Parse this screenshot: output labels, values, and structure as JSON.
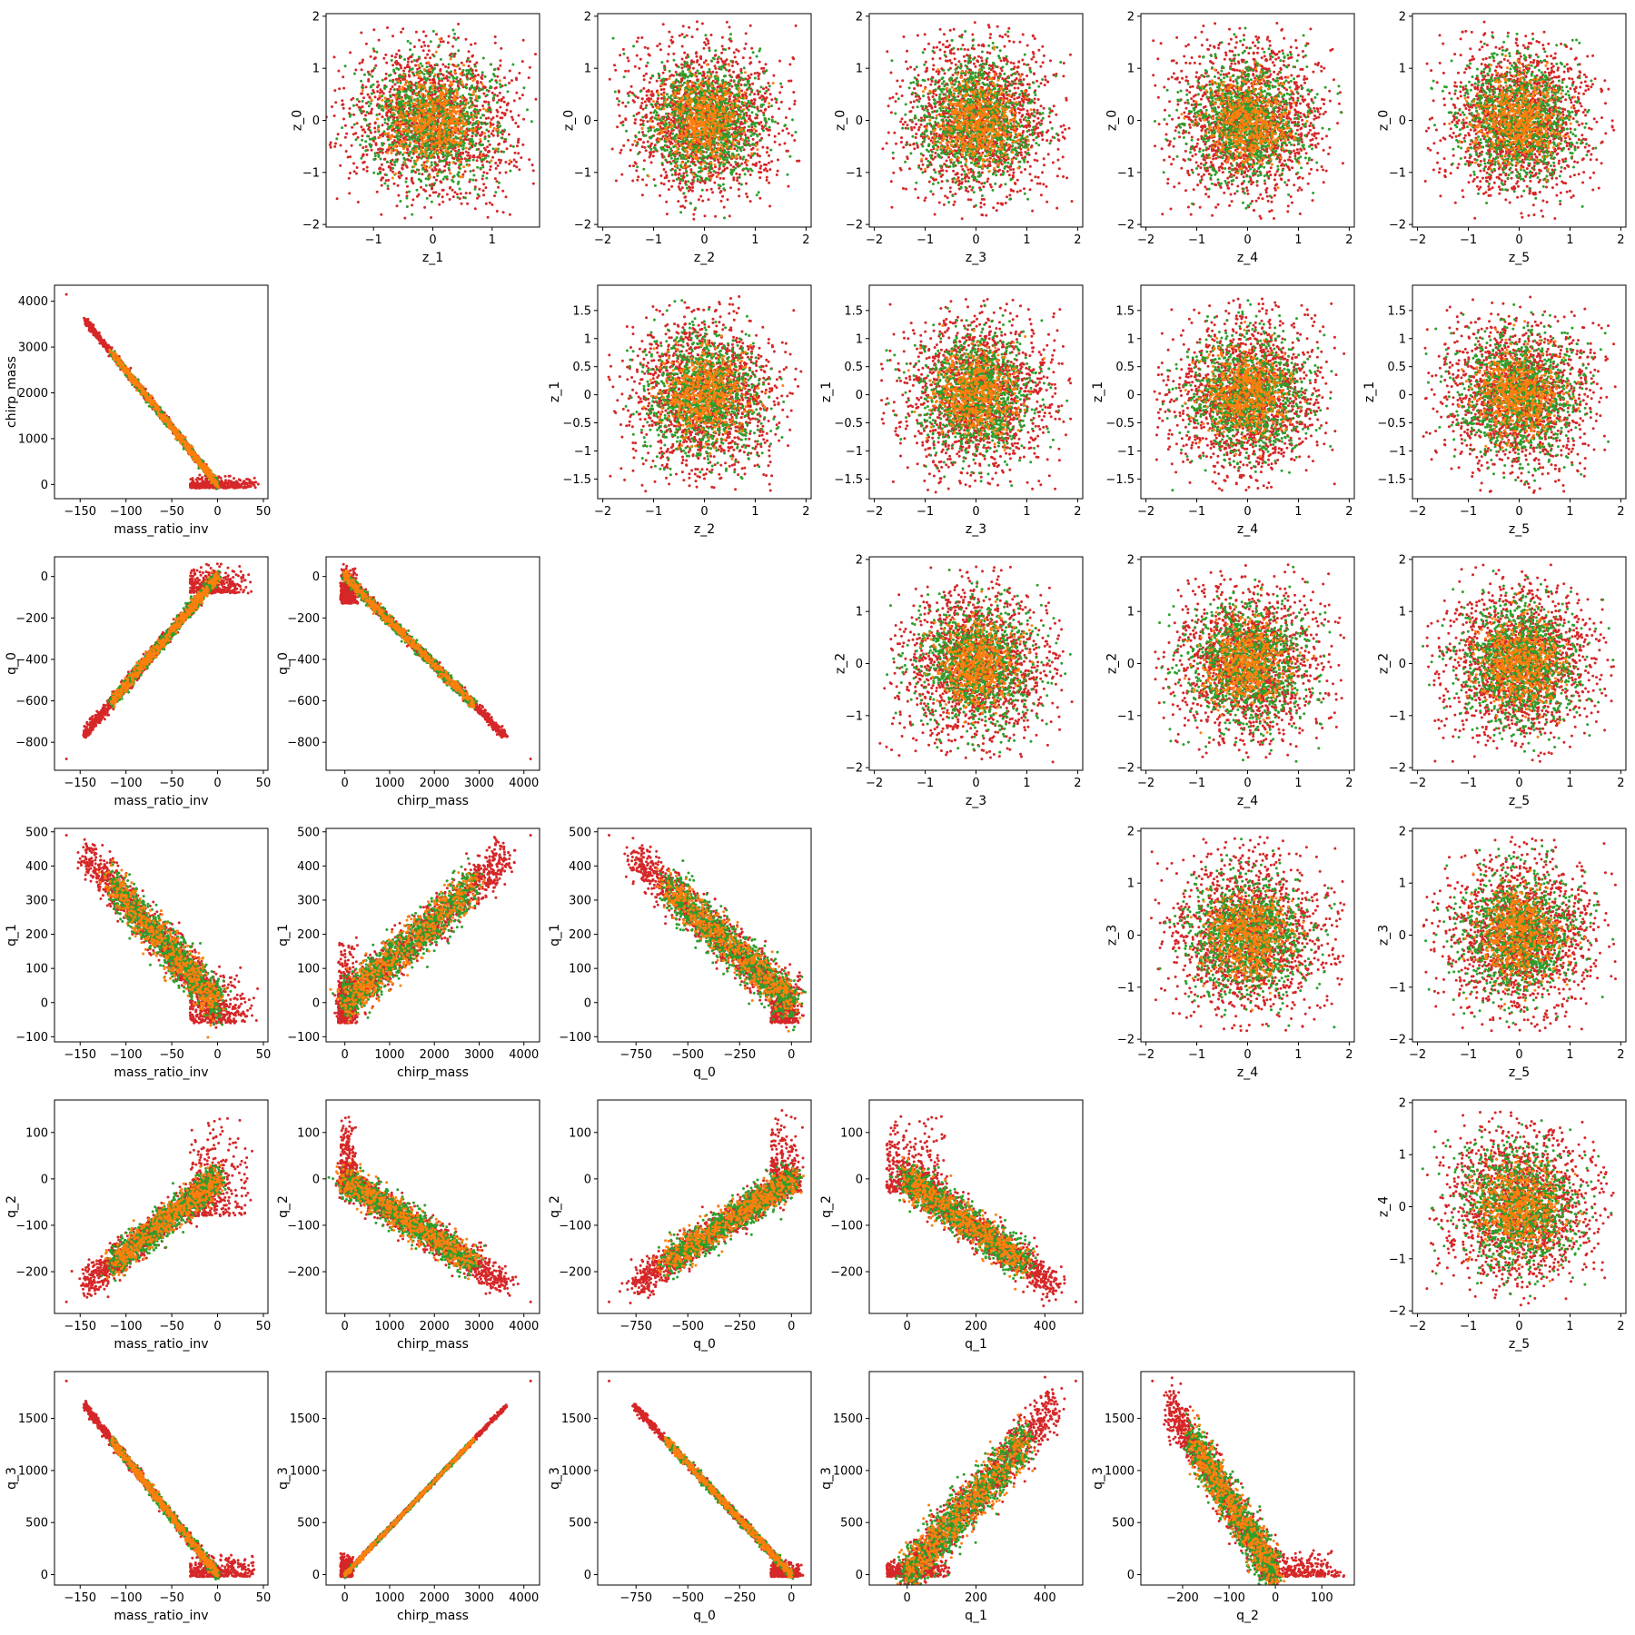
{
  "figure": {
    "point_colors": [
      "#d62728",
      "#2ca02c",
      "#ff7f0e"
    ],
    "series_point_counts": [
      1500,
      1000,
      500
    ]
  },
  "chart_data": [
    {
      "type": "scatter",
      "row": 0,
      "col": 1,
      "xlabel": "z_1",
      "ylabel": "z_0",
      "xlim": [
        -1.8,
        1.8
      ],
      "ylim": [
        -2.05,
        2.05
      ],
      "xticks": [
        -1,
        0,
        1
      ],
      "yticks": [
        -2,
        -1,
        0,
        1,
        2
      ],
      "relation": {
        "kind": "cloud",
        "sx": 0.7,
        "sy": 0.75,
        "rmax_x": 1.8,
        "rmax_y": 1.9
      }
    },
    {
      "type": "scatter",
      "row": 0,
      "col": 2,
      "xlabel": "z_2",
      "ylabel": "z_0",
      "xlim": [
        -2.1,
        2.1
      ],
      "ylim": [
        -2.05,
        2.05
      ],
      "xticks": [
        -2,
        -1,
        0,
        1,
        2
      ],
      "yticks": [
        -2,
        -1,
        0,
        1,
        2
      ],
      "relation": {
        "kind": "cloud",
        "sx": 0.75,
        "sy": 0.75,
        "rmax_x": 1.9,
        "rmax_y": 1.9
      }
    },
    {
      "type": "scatter",
      "row": 0,
      "col": 3,
      "xlabel": "z_3",
      "ylabel": "z_0",
      "xlim": [
        -2.1,
        2.1
      ],
      "ylim": [
        -2.05,
        2.05
      ],
      "xticks": [
        -2,
        -1,
        0,
        1,
        2
      ],
      "yticks": [
        -2,
        -1,
        0,
        1,
        2
      ],
      "relation": {
        "kind": "cloud",
        "sx": 0.75,
        "sy": 0.75,
        "rmax_x": 1.9,
        "rmax_y": 1.9
      }
    },
    {
      "type": "scatter",
      "row": 0,
      "col": 4,
      "xlabel": "z_4",
      "ylabel": "z_0",
      "xlim": [
        -2.1,
        2.1
      ],
      "ylim": [
        -2.05,
        2.05
      ],
      "xticks": [
        -2,
        -1,
        0,
        1,
        2
      ],
      "yticks": [
        -2,
        -1,
        0,
        1,
        2
      ],
      "relation": {
        "kind": "cloud",
        "sx": 0.75,
        "sy": 0.75,
        "rmax_x": 1.9,
        "rmax_y": 1.9
      }
    },
    {
      "type": "scatter",
      "row": 0,
      "col": 5,
      "xlabel": "z_5",
      "ylabel": "z_0",
      "xlim": [
        -2.1,
        2.1
      ],
      "ylim": [
        -2.05,
        2.05
      ],
      "xticks": [
        -2,
        -1,
        0,
        1,
        2
      ],
      "yticks": [
        -2,
        -1,
        0,
        1,
        2
      ],
      "relation": {
        "kind": "cloud",
        "sx": 0.75,
        "sy": 0.75,
        "rmax_x": 1.9,
        "rmax_y": 1.9
      }
    },
    {
      "type": "scatter",
      "row": 1,
      "col": 0,
      "xlabel": "mass_ratio_inv",
      "ylabel": "chirp_mass",
      "xlim": [
        -178,
        55
      ],
      "ylim": [
        -310,
        4350
      ],
      "xticks": [
        -150,
        -100,
        -50,
        0,
        50
      ],
      "yticks": [
        0,
        1000,
        2000,
        3000,
        4000
      ],
      "outlier": [
        -165,
        4150
      ],
      "relation": {
        "kind": "ray",
        "x_end": -145,
        "y_end": 3600,
        "width": 0.012,
        "tail": {
          "x": [
            -30,
            45
          ],
          "y": [
            -80,
            220
          ]
        }
      }
    },
    {
      "type": "scatter",
      "row": 1,
      "col": 2,
      "xlabel": "z_2",
      "ylabel": "z_1",
      "xlim": [
        -2.1,
        2.1
      ],
      "ylim": [
        -1.85,
        1.95
      ],
      "xticks": [
        -2,
        -1,
        0,
        1,
        2
      ],
      "yticks": [
        -1.5,
        -1.0,
        -0.5,
        0.0,
        0.5,
        1.0,
        1.5
      ],
      "relation": {
        "kind": "cloud",
        "sx": 0.75,
        "sy": 0.7,
        "rmax_x": 1.9,
        "rmax_y": 1.75
      }
    },
    {
      "type": "scatter",
      "row": 1,
      "col": 3,
      "xlabel": "z_3",
      "ylabel": "z_1",
      "xlim": [
        -2.1,
        2.1
      ],
      "ylim": [
        -1.85,
        1.95
      ],
      "xticks": [
        -2,
        -1,
        0,
        1,
        2
      ],
      "yticks": [
        -1.5,
        -1.0,
        -0.5,
        0.0,
        0.5,
        1.0,
        1.5
      ],
      "relation": {
        "kind": "cloud",
        "sx": 0.75,
        "sy": 0.7,
        "rmax_x": 1.9,
        "rmax_y": 1.75
      }
    },
    {
      "type": "scatter",
      "row": 1,
      "col": 4,
      "xlabel": "z_4",
      "ylabel": "z_1",
      "xlim": [
        -2.1,
        2.1
      ],
      "ylim": [
        -1.85,
        1.95
      ],
      "xticks": [
        -2,
        -1,
        0,
        1,
        2
      ],
      "yticks": [
        -1.5,
        -1.0,
        -0.5,
        0.0,
        0.5,
        1.0,
        1.5
      ],
      "relation": {
        "kind": "cloud",
        "sx": 0.75,
        "sy": 0.7,
        "rmax_x": 1.9,
        "rmax_y": 1.75
      }
    },
    {
      "type": "scatter",
      "row": 1,
      "col": 5,
      "xlabel": "z_5",
      "ylabel": "z_1",
      "xlim": [
        -2.1,
        2.1
      ],
      "ylim": [
        -1.85,
        1.95
      ],
      "xticks": [
        -2,
        -1,
        0,
        1,
        2
      ],
      "yticks": [
        -1.5,
        -1.0,
        -0.5,
        0.0,
        0.5,
        1.0,
        1.5
      ],
      "relation": {
        "kind": "cloud",
        "sx": 0.75,
        "sy": 0.7,
        "rmax_x": 1.9,
        "rmax_y": 1.75
      }
    },
    {
      "type": "scatter",
      "row": 2,
      "col": 0,
      "xlabel": "mass_ratio_inv",
      "ylabel": "q_0",
      "xlim": [
        -178,
        55
      ],
      "ylim": [
        -935,
        95
      ],
      "xticks": [
        -150,
        -100,
        -50,
        0,
        50
      ],
      "yticks": [
        -800,
        -600,
        -400,
        -200,
        0
      ],
      "outlier": [
        -165,
        -880
      ],
      "relation": {
        "kind": "ray",
        "x_end": -145,
        "y_end": -760,
        "width": 0.02,
        "tail": {
          "x": [
            -30,
            40
          ],
          "y": [
            -80,
            70
          ]
        }
      }
    },
    {
      "type": "scatter",
      "row": 2,
      "col": 1,
      "xlabel": "chirp_mass",
      "ylabel": "q_0",
      "xlim": [
        -420,
        4350
      ],
      "ylim": [
        -935,
        95
      ],
      "xticks": [
        0,
        1000,
        2000,
        3000,
        4000
      ],
      "yticks": [
        -800,
        -600,
        -400,
        -200,
        0
      ],
      "outlier": [
        4150,
        -880
      ],
      "relation": {
        "kind": "ray",
        "x_end": 3600,
        "y_end": -770,
        "width": 0.015,
        "tail": {
          "x": [
            -100,
            300
          ],
          "y": [
            -130,
            70
          ]
        }
      }
    },
    {
      "type": "scatter",
      "row": 2,
      "col": 3,
      "xlabel": "z_3",
      "ylabel": "z_2",
      "xlim": [
        -2.1,
        2.1
      ],
      "ylim": [
        -2.05,
        2.05
      ],
      "xticks": [
        -2,
        -1,
        0,
        1,
        2
      ],
      "yticks": [
        -2,
        -1,
        0,
        1,
        2
      ],
      "relation": {
        "kind": "cloud",
        "sx": 0.75,
        "sy": 0.75,
        "rmax_x": 1.9,
        "rmax_y": 1.9
      }
    },
    {
      "type": "scatter",
      "row": 2,
      "col": 4,
      "xlabel": "z_4",
      "ylabel": "z_2",
      "xlim": [
        -2.1,
        2.1
      ],
      "ylim": [
        -2.05,
        2.05
      ],
      "xticks": [
        -2,
        -1,
        0,
        1,
        2
      ],
      "yticks": [
        -2,
        -1,
        0,
        1,
        2
      ],
      "relation": {
        "kind": "cloud",
        "sx": 0.75,
        "sy": 0.75,
        "rmax_x": 1.9,
        "rmax_y": 1.9
      }
    },
    {
      "type": "scatter",
      "row": 2,
      "col": 5,
      "xlabel": "z_5",
      "ylabel": "z_2",
      "xlim": [
        -2.1,
        2.1
      ],
      "ylim": [
        -2.05,
        2.05
      ],
      "xticks": [
        -2,
        -1,
        0,
        1,
        2
      ],
      "yticks": [
        -2,
        -1,
        0,
        1,
        2
      ],
      "relation": {
        "kind": "cloud",
        "sx": 0.75,
        "sy": 0.75,
        "rmax_x": 1.9,
        "rmax_y": 1.9
      }
    },
    {
      "type": "scatter",
      "row": 3,
      "col": 0,
      "xlabel": "mass_ratio_inv",
      "ylabel": "q_1",
      "xlim": [
        -178,
        55
      ],
      "ylim": [
        -115,
        510
      ],
      "xticks": [
        -150,
        -100,
        -50,
        0,
        50
      ],
      "yticks": [
        -100,
        0,
        100,
        200,
        300,
        400,
        500
      ],
      "outlier": [
        -165,
        490
      ],
      "relation": {
        "kind": "ray",
        "x_end": -145,
        "y_end": 430,
        "width": 0.07,
        "tail": {
          "x": [
            -30,
            45
          ],
          "y": [
            -60,
            120
          ]
        }
      }
    },
    {
      "type": "scatter",
      "row": 3,
      "col": 1,
      "xlabel": "chirp_mass",
      "ylabel": "q_1",
      "xlim": [
        -420,
        4350
      ],
      "ylim": [
        -115,
        510
      ],
      "xticks": [
        0,
        1000,
        2000,
        3000,
        4000
      ],
      "yticks": [
        -100,
        0,
        100,
        200,
        300,
        400,
        500
      ],
      "outlier": [
        4150,
        490
      ],
      "relation": {
        "kind": "ray",
        "x_end": 3600,
        "y_end": 430,
        "width": 0.07,
        "tail": {
          "x": [
            -150,
            300
          ],
          "y": [
            -60,
            200
          ]
        }
      }
    },
    {
      "type": "scatter",
      "row": 3,
      "col": 2,
      "xlabel": "q_0",
      "ylabel": "q_1",
      "xlim": [
        -935,
        95
      ],
      "ylim": [
        -115,
        510
      ],
      "xticks": [
        -750,
        -500,
        -250,
        0
      ],
      "yticks": [
        -100,
        0,
        100,
        200,
        300,
        400,
        500
      ],
      "outlier": [
        -880,
        490
      ],
      "relation": {
        "kind": "ray",
        "x_end": -760,
        "y_end": 430,
        "width": 0.07,
        "tail": {
          "x": [
            -100,
            60
          ],
          "y": [
            -60,
            100
          ]
        }
      }
    },
    {
      "type": "scatter",
      "row": 3,
      "col": 4,
      "xlabel": "z_4",
      "ylabel": "z_3",
      "xlim": [
        -2.1,
        2.1
      ],
      "ylim": [
        -2.05,
        2.05
      ],
      "xticks": [
        -2,
        -1,
        0,
        1,
        2
      ],
      "yticks": [
        -2,
        -1,
        0,
        1,
        2
      ],
      "relation": {
        "kind": "cloud",
        "sx": 0.75,
        "sy": 0.75,
        "rmax_x": 1.9,
        "rmax_y": 1.9
      }
    },
    {
      "type": "scatter",
      "row": 3,
      "col": 5,
      "xlabel": "z_5",
      "ylabel": "z_3",
      "xlim": [
        -2.1,
        2.1
      ],
      "ylim": [
        -2.05,
        2.05
      ],
      "xticks": [
        -2,
        -1,
        0,
        1,
        2
      ],
      "yticks": [
        -2,
        -1,
        0,
        1,
        2
      ],
      "relation": {
        "kind": "cloud",
        "sx": 0.75,
        "sy": 0.75,
        "rmax_x": 1.9,
        "rmax_y": 1.9
      }
    },
    {
      "type": "scatter",
      "row": 4,
      "col": 0,
      "xlabel": "mass_ratio_inv",
      "ylabel": "q_2",
      "xlim": [
        -178,
        55
      ],
      "ylim": [
        -290,
        170
      ],
      "xticks": [
        -150,
        -100,
        -50,
        0,
        50
      ],
      "yticks": [
        -200,
        -100,
        0,
        100
      ],
      "outlier": [
        -165,
        -265
      ],
      "relation": {
        "kind": "ray",
        "x_end": -145,
        "y_end": -230,
        "width": 0.07,
        "tail": {
          "x": [
            -30,
            40
          ],
          "y": [
            -80,
            150
          ]
        }
      }
    },
    {
      "type": "scatter",
      "row": 4,
      "col": 1,
      "xlabel": "chirp_mass",
      "ylabel": "q_2",
      "xlim": [
        -420,
        4350
      ],
      "ylim": [
        -290,
        170
      ],
      "xticks": [
        0,
        1000,
        2000,
        3000,
        4000
      ],
      "yticks": [
        -200,
        -100,
        0,
        100
      ],
      "outlier": [
        4150,
        -265
      ],
      "relation": {
        "kind": "ray",
        "x_end": 3600,
        "y_end": -230,
        "width": 0.07,
        "tail": {
          "x": [
            -100,
            300
          ],
          "y": [
            -30,
            150
          ]
        }
      }
    },
    {
      "type": "scatter",
      "row": 4,
      "col": 2,
      "xlabel": "q_0",
      "ylabel": "q_2",
      "xlim": [
        -935,
        95
      ],
      "ylim": [
        -290,
        170
      ],
      "xticks": [
        -750,
        -500,
        -250,
        0
      ],
      "yticks": [
        -200,
        -100,
        0,
        100
      ],
      "outlier": [
        -880,
        -265
      ],
      "relation": {
        "kind": "ray",
        "x_end": -760,
        "y_end": -230,
        "width": 0.07,
        "tail": {
          "x": [
            -100,
            60
          ],
          "y": [
            -30,
            150
          ]
        }
      }
    },
    {
      "type": "scatter",
      "row": 4,
      "col": 3,
      "xlabel": "q_1",
      "ylabel": "q_2",
      "xlim": [
        -110,
        510
      ],
      "ylim": [
        -290,
        170
      ],
      "xticks": [
        0,
        200,
        400
      ],
      "yticks": [
        -200,
        -100,
        0,
        100
      ],
      "outlier": [
        490,
        -265
      ],
      "relation": {
        "kind": "ray",
        "x_end": 430,
        "y_end": -230,
        "width": 0.08,
        "tail": {
          "x": [
            -60,
            120
          ],
          "y": [
            -30,
            150
          ]
        }
      }
    },
    {
      "type": "scatter",
      "row": 4,
      "col": 5,
      "xlabel": "z_5",
      "ylabel": "z_4",
      "xlim": [
        -2.1,
        2.1
      ],
      "ylim": [
        -2.05,
        2.05
      ],
      "xticks": [
        -2,
        -1,
        0,
        1,
        2
      ],
      "yticks": [
        -2,
        -1,
        0,
        1,
        2
      ],
      "relation": {
        "kind": "cloud",
        "sx": 0.75,
        "sy": 0.75,
        "rmax_x": 1.9,
        "rmax_y": 1.9
      }
    },
    {
      "type": "scatter",
      "row": 5,
      "col": 0,
      "xlabel": "mass_ratio_inv",
      "ylabel": "q_3",
      "xlim": [
        -178,
        55
      ],
      "ylim": [
        -100,
        1950
      ],
      "xticks": [
        -150,
        -100,
        -50,
        0,
        50
      ],
      "yticks": [
        0,
        500,
        1000,
        1500
      ],
      "outlier": [
        -165,
        1860
      ],
      "relation": {
        "kind": "ray",
        "x_end": -145,
        "y_end": 1620,
        "width": 0.015,
        "tail": {
          "x": [
            -30,
            45
          ],
          "y": [
            -20,
            200
          ]
        }
      }
    },
    {
      "type": "scatter",
      "row": 5,
      "col": 1,
      "xlabel": "chirp_mass",
      "ylabel": "q_3",
      "xlim": [
        -420,
        4350
      ],
      "ylim": [
        -100,
        1950
      ],
      "xticks": [
        0,
        1000,
        2000,
        3000,
        4000
      ],
      "yticks": [
        0,
        500,
        1000,
        1500
      ],
      "outlier": [
        4150,
        1860
      ],
      "relation": {
        "kind": "ray",
        "x_end": 3600,
        "y_end": 1620,
        "width": 0.006,
        "tail": {
          "x": [
            -100,
            200
          ],
          "y": [
            -20,
            220
          ]
        }
      }
    },
    {
      "type": "scatter",
      "row": 5,
      "col": 2,
      "xlabel": "q_0",
      "ylabel": "q_3",
      "xlim": [
        -935,
        95
      ],
      "ylim": [
        -100,
        1950
      ],
      "xticks": [
        -750,
        -500,
        -250,
        0
      ],
      "yticks": [
        0,
        500,
        1000,
        1500
      ],
      "outlier": [
        -880,
        1860
      ],
      "relation": {
        "kind": "ray",
        "x_end": -760,
        "y_end": 1620,
        "width": 0.012,
        "tail": {
          "x": [
            -100,
            60
          ],
          "y": [
            -20,
            150
          ]
        }
      }
    },
    {
      "type": "scatter",
      "row": 5,
      "col": 3,
      "xlabel": "q_1",
      "ylabel": "q_3",
      "xlim": [
        -110,
        510
      ],
      "ylim": [
        -100,
        1950
      ],
      "xticks": [
        0,
        200,
        400
      ],
      "yticks": [
        0,
        500,
        1000,
        1500
      ],
      "outlier": [
        490,
        1860
      ],
      "relation": {
        "kind": "ray",
        "x_end": 430,
        "y_end": 1620,
        "width": 0.07,
        "tail": {
          "x": [
            -60,
            140
          ],
          "y": [
            -20,
            150
          ]
        }
      }
    },
    {
      "type": "scatter",
      "row": 5,
      "col": 4,
      "xlabel": "q_2",
      "ylabel": "q_3",
      "xlim": [
        -290,
        170
      ],
      "ylim": [
        -100,
        1950
      ],
      "xticks": [
        -200,
        -100,
        0,
        100
      ],
      "yticks": [
        0,
        500,
        1000,
        1500
      ],
      "outlier": [
        -265,
        1860
      ],
      "relation": {
        "kind": "ray",
        "x_end": -230,
        "y_end": 1620,
        "width": 0.07,
        "tail": {
          "x": [
            -30,
            150
          ],
          "y": [
            -20,
            250
          ]
        }
      }
    }
  ]
}
